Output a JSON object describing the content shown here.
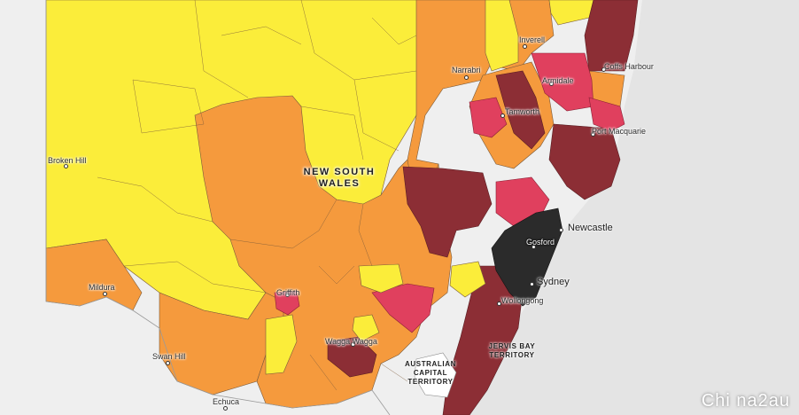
{
  "map": {
    "state_label": "NEW SOUTH\nWALES",
    "territories": [
      {
        "id": "act",
        "name": "AUSTRALIAN\nCAPITAL\nTERRITORY"
      },
      {
        "id": "jervis",
        "name": "JERVIS BAY\nTERRITORY"
      }
    ],
    "cities": [
      {
        "id": "broken-hill",
        "name": "Broken Hill"
      },
      {
        "id": "mildura",
        "name": "Mildura"
      },
      {
        "id": "swan-hill",
        "name": "Swan Hill"
      },
      {
        "id": "echuca",
        "name": "Echuca"
      },
      {
        "id": "narrabri",
        "name": "Narrabri"
      },
      {
        "id": "inverell",
        "name": "Inverell"
      },
      {
        "id": "armidale",
        "name": "Armidale"
      },
      {
        "id": "coffs-harbour",
        "name": "Coffs Harbour"
      },
      {
        "id": "tamworth",
        "name": "Tamworth"
      },
      {
        "id": "port-macquarie",
        "name": "Port Macquarie"
      },
      {
        "id": "newcastle",
        "name": "Newcastle"
      },
      {
        "id": "gosford",
        "name": "Gosford"
      },
      {
        "id": "sydney",
        "name": "Sydney"
      },
      {
        "id": "wollongong",
        "name": "Wollongong"
      },
      {
        "id": "griffith",
        "name": "Griffith"
      },
      {
        "id": "wagga-wagga",
        "name": "Wagga Wagga"
      }
    ],
    "colors": {
      "yellow": "#fbed3a",
      "orange": "#f59a3d",
      "pink": "#e0405e",
      "maroon": "#8c2e35",
      "black": "#2b2b2b",
      "water": "#e4e4e4",
      "land_outside": "#efefef",
      "border": "#7a5a3a"
    }
  },
  "watermark": "Chi na2au"
}
